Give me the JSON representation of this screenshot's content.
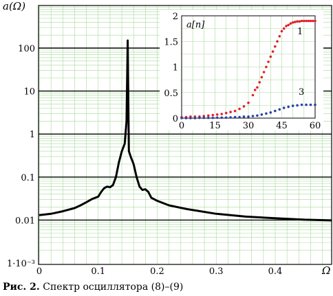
{
  "caption": {
    "label": "Рис. 2.",
    "text": "Спектр осциллятора (8)–(9)"
  },
  "chart_data": [
    {
      "type": "line",
      "ylabel": "a(Ω)",
      "xlabel": "Ω",
      "y_scale": "log",
      "x_ticks": [
        "0",
        "0.1",
        "0.2",
        "0.3",
        "0.4"
      ],
      "y_ticks": [
        "1·10⁻³",
        "0.01",
        "0.1",
        "1",
        "10",
        "100"
      ],
      "xlim": [
        0,
        0.5
      ],
      "ylim": [
        0.001,
        300
      ],
      "grid": true,
      "series": [
        {
          "x": [
            0,
            0.02,
            0.04,
            0.06,
            0.07,
            0.08,
            0.09,
            0.1,
            0.105,
            0.11,
            0.115,
            0.12,
            0.125,
            0.13,
            0.135,
            0.14,
            0.145,
            0.148,
            0.15,
            0.152,
            0.155,
            0.16,
            0.165,
            0.17,
            0.175,
            0.18,
            0.185,
            0.19,
            0.2,
            0.22,
            0.25,
            0.3,
            0.35,
            0.4,
            0.45,
            0.5
          ],
          "y": [
            0.013,
            0.014,
            0.016,
            0.019,
            0.022,
            0.026,
            0.031,
            0.035,
            0.045,
            0.055,
            0.06,
            0.058,
            0.065,
            0.1,
            0.22,
            0.4,
            0.6,
            2.0,
            150,
            0.4,
            0.3,
            0.2,
            0.1,
            0.06,
            0.05,
            0.052,
            0.045,
            0.033,
            0.028,
            0.022,
            0.018,
            0.014,
            0.012,
            0.011,
            0.0102,
            0.0098
          ]
        }
      ]
    },
    {
      "type": "scatter",
      "ylabel": "a[n]",
      "x_ticks": [
        "0",
        "15",
        "30",
        "45",
        "60"
      ],
      "y_ticks": [
        "0",
        "0.5",
        "1",
        "1.5",
        "2"
      ],
      "xlim": [
        0,
        60
      ],
      "ylim": [
        0,
        2
      ],
      "grid": true,
      "colors": [
        "#e0202a",
        "#2c3fa8"
      ],
      "series": [
        {
          "name": "1",
          "x": [
            0,
            2,
            4,
            6,
            8,
            10,
            12,
            14,
            16,
            18,
            20,
            22,
            24,
            26,
            28,
            30,
            32,
            33,
            34,
            35,
            36,
            37,
            38,
            39,
            40,
            41,
            42,
            43,
            44,
            45,
            46,
            47,
            48,
            49,
            50,
            51,
            52,
            53,
            54,
            55,
            56,
            57,
            58,
            59,
            60
          ],
          "y": [
            0.02,
            0.02,
            0.03,
            0.03,
            0.03,
            0.04,
            0.05,
            0.06,
            0.07,
            0.08,
            0.1,
            0.12,
            0.14,
            0.18,
            0.23,
            0.3,
            0.45,
            0.55,
            0.6,
            0.7,
            0.8,
            0.9,
            1.0,
            1.1,
            1.2,
            1.3,
            1.4,
            1.5,
            1.6,
            1.7,
            1.75,
            1.8,
            1.82,
            1.85,
            1.87,
            1.88,
            1.89,
            1.89,
            1.9,
            1.9,
            1.9,
            1.9,
            1.9,
            1.9,
            1.9
          ]
        },
        {
          "name": "3",
          "x": [
            0,
            2,
            4,
            6,
            8,
            10,
            12,
            14,
            16,
            18,
            20,
            22,
            24,
            26,
            28,
            30,
            32,
            34,
            36,
            38,
            40,
            42,
            44,
            46,
            48,
            50,
            52,
            54,
            56,
            58,
            60
          ],
          "y": [
            0.0,
            0.0,
            0.0,
            0.0,
            0.005,
            0.005,
            0.005,
            0.005,
            0.01,
            0.01,
            0.01,
            0.015,
            0.02,
            0.02,
            0.03,
            0.03,
            0.04,
            0.05,
            0.07,
            0.09,
            0.11,
            0.14,
            0.17,
            0.2,
            0.22,
            0.24,
            0.25,
            0.26,
            0.26,
            0.26,
            0.26
          ]
        }
      ]
    }
  ]
}
